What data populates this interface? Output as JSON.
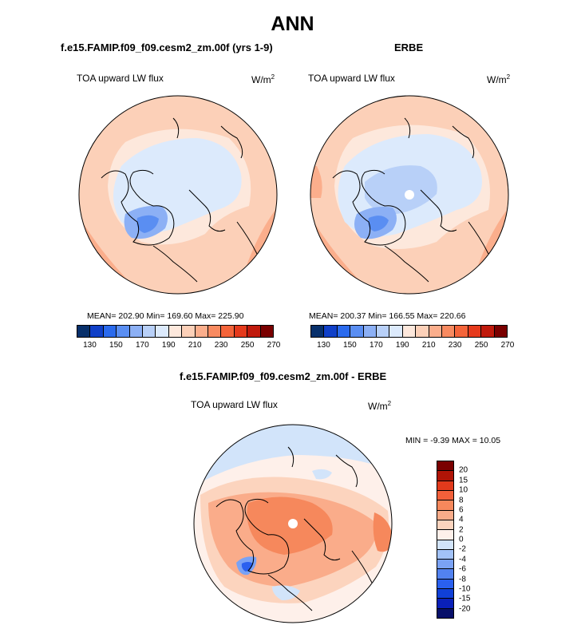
{
  "title": "ANN",
  "colors": {
    "abs_scale": [
      "#08306b",
      "#1040c8",
      "#2a6aed",
      "#5a8ef2",
      "#8cb0f5",
      "#b8d0f8",
      "#dceafc",
      "#fde8dc",
      "#fcd0b8",
      "#fbae8c",
      "#f88a60",
      "#f4643a",
      "#e53a1c",
      "#c01a0c",
      "#7a0000"
    ],
    "diff_scale": [
      "#08106a",
      "#0a20b8",
      "#1040d8",
      "#2a60ef",
      "#5282f0",
      "#7aa2f5",
      "#a2c2f8",
      "#d2e4fa",
      "#fef0ea",
      "#fcd4be",
      "#faac8a",
      "#f6885c",
      "#f2603a",
      "#e23a1c",
      "#b01406",
      "#7a0000"
    ],
    "coast": "#000000"
  },
  "panels": {
    "model": {
      "title": "f.e15.FAMIP.f09_f09.cesm2_zm.00f (yrs 1-9)",
      "variable": "TOA upward LW flux",
      "units": "W/m",
      "units_sup": "2",
      "stats": "MEAN= 202.90  Min= 169.60  Max= 225.90"
    },
    "obs": {
      "title": "ERBE",
      "variable": "TOA upward LW flux",
      "units": "W/m",
      "units_sup": "2",
      "stats": "MEAN= 200.37  Min= 166.55  Max= 220.66"
    },
    "diff": {
      "title": "f.e15.FAMIP.f09_f09.cesm2_zm.00f - ERBE",
      "variable": "TOA upward LW flux",
      "units": "W/m",
      "units_sup": "2",
      "stats": "MIN =  -9.39 MAX =  10.05"
    }
  },
  "chart_data": [
    {
      "type": "heatmap",
      "projection": "north polar stereographic",
      "title": "f.e15.FAMIP.f09_f09.cesm2_zm.00f (yrs 1-9)",
      "variable": "TOA upward LW flux",
      "units": "W/m2",
      "mean": 202.9,
      "min": 169.6,
      "max": 225.9,
      "colorbar_labels": [
        "130",
        "150",
        "170",
        "190",
        "210",
        "230",
        "250",
        "270"
      ]
    },
    {
      "type": "heatmap",
      "projection": "north polar stereographic",
      "title": "ERBE",
      "variable": "TOA upward LW flux",
      "units": "W/m2",
      "mean": 200.37,
      "min": 166.55,
      "max": 220.66,
      "colorbar_labels": [
        "130",
        "150",
        "170",
        "190",
        "210",
        "230",
        "250",
        "270"
      ]
    },
    {
      "type": "heatmap",
      "projection": "north polar stereographic",
      "title": "f.e15.FAMIP.f09_f09.cesm2_zm.00f - ERBE",
      "variable": "TOA upward LW flux",
      "units": "W/m2",
      "min": -9.39,
      "max": 10.05,
      "colorbar_labels": [
        "20",
        "15",
        "10",
        "8",
        "6",
        "4",
        "2",
        "0",
        "-2",
        "-4",
        "-6",
        "-8",
        "-10",
        "-15",
        "-20"
      ]
    }
  ]
}
